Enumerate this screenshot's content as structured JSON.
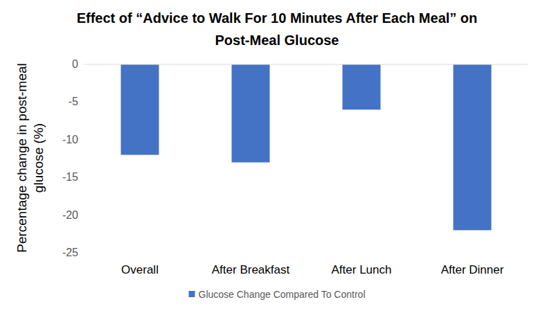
{
  "chart_data": {
    "type": "bar",
    "title": "Effect of “Advice to Walk For 10 Minutes After Each Meal” on Post-Meal Glucose",
    "y_label": "Percentage change in post-meal glucose (%)",
    "categories": [
      "Overall",
      "After Breakfast",
      "After Lunch",
      "After Dinner"
    ],
    "series": [
      {
        "name": "Glucose Change Compared To Control",
        "color": "#4472c4",
        "values": [
          -12,
          -13,
          -6,
          -22
        ]
      }
    ],
    "ylim": [
      -25,
      0
    ],
    "yticks": [
      0,
      -5,
      -10,
      -15,
      -20,
      -25
    ],
    "grid": false,
    "legend": "bottom"
  }
}
